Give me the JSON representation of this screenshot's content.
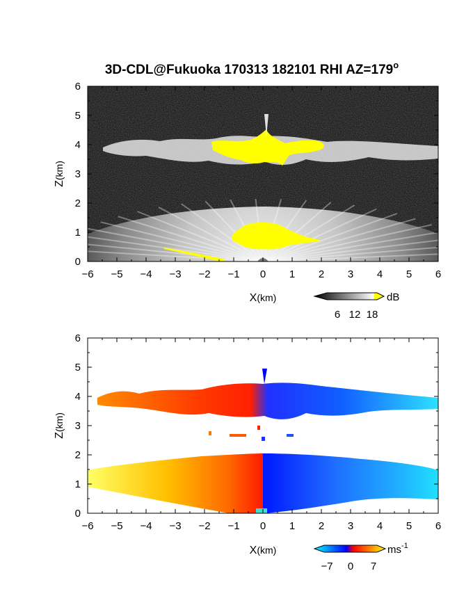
{
  "title": "3D-CDL@Fukuoka 170313 182101 RHI AZ=179",
  "title_superscript": "o",
  "chart_data": [
    {
      "type": "heatmap",
      "panel": "backscatter",
      "xlabel_main": "X",
      "xlabel_unit": "(km)",
      "ylabel_main": "Z",
      "ylabel_unit": "(km)",
      "xlim": [
        -6,
        6
      ],
      "ylim": [
        0,
        6
      ],
      "x_ticks": [
        "-6",
        "-5",
        "-4",
        "-3",
        "-2",
        "-1",
        "0",
        "1",
        "2",
        "3",
        "4",
        "5",
        "6"
      ],
      "y_ticks": [
        "0",
        "1",
        "2",
        "3",
        "4",
        "5",
        "6"
      ],
      "colorbar": {
        "unit": "dB",
        "ticks": [
          "6",
          "12",
          "18"
        ],
        "range": [
          0,
          20
        ],
        "colors": [
          "#000000",
          "#7f7f7f",
          "#ffffff",
          "#ffff00"
        ]
      },
      "features": [
        {
          "name": "cloud layer",
          "x_range": [
            -5.6,
            6
          ],
          "z_range": [
            3.3,
            4.2
          ],
          "level": "strong"
        },
        {
          "name": "boundary layer fan",
          "x_range": [
            -6,
            6
          ],
          "z_range": [
            0,
            1.8
          ],
          "level": "moderate"
        },
        {
          "name": "saturated core aloft",
          "x_range": [
            -1,
            2.6
          ],
          "z_range": [
            3.4,
            4.2
          ],
          "level": "saturated"
        },
        {
          "name": "saturated core near ground",
          "x_range": [
            -1.2,
            1.8
          ],
          "z_range": [
            0.4,
            1.3
          ],
          "level": "saturated"
        }
      ]
    },
    {
      "type": "heatmap",
      "panel": "doppler_velocity",
      "xlabel_main": "X",
      "xlabel_unit": "(km)",
      "ylabel_main": "Z",
      "ylabel_unit": "(km)",
      "xlim": [
        -6,
        6
      ],
      "ylim": [
        0,
        6
      ],
      "x_ticks": [
        "-6",
        "-5",
        "-4",
        "-3",
        "-2",
        "-1",
        "0",
        "1",
        "2",
        "3",
        "4",
        "5",
        "6"
      ],
      "y_ticks": [
        "0",
        "1",
        "2",
        "3",
        "4",
        "5",
        "6"
      ],
      "colorbar": {
        "unit": "ms",
        "unit_exponent": "-1",
        "ticks": [
          "−7",
          "0",
          "7"
        ],
        "range": [
          -8,
          8
        ],
        "colors": [
          "#00ffff",
          "#0000ff",
          "#ff0000",
          "#ffff00"
        ]
      },
      "features": [
        {
          "name": "boundary layer negative x side",
          "x_range": [
            -6,
            0
          ],
          "z_range": [
            0,
            2
          ],
          "sign": "positive"
        },
        {
          "name": "boundary layer positive x side",
          "x_range": [
            0,
            6
          ],
          "z_range": [
            0,
            2
          ],
          "sign": "negative"
        },
        {
          "name": "cloud layer negative x side",
          "x_range": [
            -5.5,
            -1
          ],
          "z_range": [
            3.3,
            4.3
          ],
          "sign": "positive"
        },
        {
          "name": "cloud layer positive x side",
          "x_range": [
            -1,
            6
          ],
          "z_range": [
            3.2,
            4.4
          ],
          "sign": "negative"
        }
      ]
    }
  ]
}
